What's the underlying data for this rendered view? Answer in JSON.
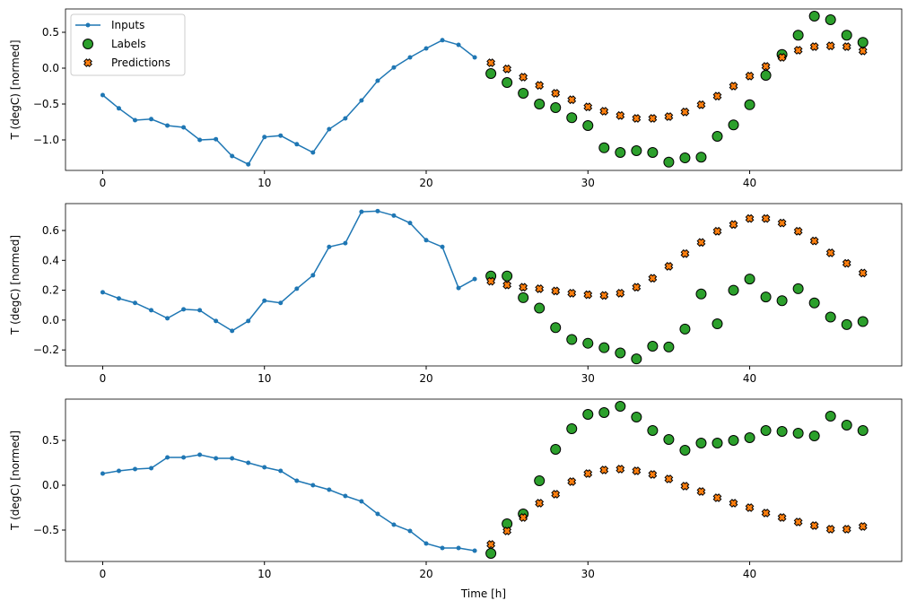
{
  "chart_data": {
    "type": "line",
    "xlabel": "Time [h]",
    "legend": {
      "placement": "top-left",
      "entries": [
        "Inputs",
        "Labels",
        "Predictions"
      ]
    },
    "colors": {
      "Inputs": "#1f77b4",
      "Labels": "#2ca02c",
      "Predictions": "#ff7f0e"
    },
    "xlim": [
      -2.3,
      49.4
    ],
    "xticks": [
      0,
      10,
      20,
      30,
      40
    ],
    "panels": [
      {
        "ylabel": "T (degC) [normed]",
        "ylim": [
          -1.425,
          0.825
        ],
        "yticks": [
          -1.0,
          -0.5,
          0.0,
          0.5
        ],
        "ytick_labels": [
          "−1.0",
          "−0.5",
          "0.0",
          "0.5"
        ],
        "inputs": [
          -0.375,
          -0.56,
          -0.725,
          -0.71,
          -0.8,
          -0.825,
          -1.0,
          -0.99,
          -1.225,
          -1.34,
          -0.96,
          -0.94,
          -1.06,
          -1.175,
          -0.85,
          -0.7,
          -0.45,
          -0.175,
          0.01,
          0.15,
          0.275,
          0.39,
          0.325,
          0.15
        ],
        "labels": [
          -0.075,
          -0.2,
          -0.35,
          -0.5,
          -0.55,
          -0.69,
          -0.8,
          -1.11,
          -1.175,
          -1.15,
          -1.175,
          -1.31,
          -1.25,
          -1.24,
          -0.95,
          -0.79,
          -0.51,
          -0.1,
          0.19,
          0.46,
          0.725,
          0.675,
          0.46,
          0.36
        ],
        "predictions": [
          0.075,
          -0.01,
          -0.125,
          -0.24,
          -0.35,
          -0.44,
          -0.54,
          -0.6,
          -0.66,
          -0.7,
          -0.7,
          -0.675,
          -0.61,
          -0.51,
          -0.39,
          -0.25,
          -0.11,
          0.025,
          0.15,
          0.25,
          0.3,
          0.31,
          0.3,
          0.24
        ]
      },
      {
        "ylabel": "T (degC) [normed]",
        "ylim": [
          -0.307,
          0.78
        ],
        "yticks": [
          -0.2,
          0.0,
          0.2,
          0.4,
          0.6
        ],
        "ytick_labels": [
          "−0.2",
          "0.0",
          "0.2",
          "0.4",
          "0.6"
        ],
        "inputs": [
          0.186,
          0.145,
          0.115,
          0.066,
          0.012,
          0.072,
          0.066,
          -0.006,
          -0.072,
          -0.006,
          0.13,
          0.115,
          0.21,
          0.3,
          0.49,
          0.515,
          0.725,
          0.73,
          0.7,
          0.65,
          0.535,
          0.49,
          0.215,
          0.275
        ],
        "labels": [
          0.295,
          0.295,
          0.15,
          0.08,
          -0.05,
          -0.13,
          -0.155,
          -0.185,
          -0.22,
          -0.26,
          -0.175,
          -0.18,
          -0.06,
          0.175,
          -0.025,
          0.2,
          0.275,
          0.155,
          0.13,
          0.21,
          0.115,
          0.02,
          -0.03,
          -0.01
        ],
        "predictions": [
          0.26,
          0.235,
          0.22,
          0.21,
          0.195,
          0.18,
          0.17,
          0.165,
          0.18,
          0.22,
          0.28,
          0.36,
          0.445,
          0.52,
          0.595,
          0.64,
          0.68,
          0.68,
          0.65,
          0.595,
          0.53,
          0.45,
          0.38,
          0.315
        ]
      },
      {
        "ylabel": "T (degC) [normed]",
        "ylim": [
          -0.85,
          0.96
        ],
        "yticks": [
          -0.5,
          0.0,
          0.5
        ],
        "ytick_labels": [
          "−0.5",
          "0.0",
          "0.5"
        ],
        "inputs": [
          0.13,
          0.16,
          0.18,
          0.19,
          0.31,
          0.31,
          0.34,
          0.3,
          0.3,
          0.25,
          0.2,
          0.16,
          0.05,
          0.0,
          -0.05,
          -0.12,
          -0.18,
          -0.32,
          -0.44,
          -0.51,
          -0.65,
          -0.7,
          -0.7,
          -0.73
        ],
        "labels": [
          -0.76,
          -0.43,
          -0.32,
          0.05,
          0.4,
          0.63,
          0.79,
          0.81,
          0.88,
          0.76,
          0.61,
          0.51,
          0.39,
          0.47,
          0.47,
          0.5,
          0.53,
          0.61,
          0.6,
          0.58,
          0.55,
          0.77,
          0.67,
          0.61
        ],
        "predictions": [
          -0.66,
          -0.51,
          -0.36,
          -0.2,
          -0.1,
          0.04,
          0.13,
          0.17,
          0.18,
          0.16,
          0.12,
          0.07,
          -0.01,
          -0.07,
          -0.14,
          -0.2,
          -0.25,
          -0.31,
          -0.36,
          -0.41,
          -0.45,
          -0.49,
          -0.49,
          -0.46
        ]
      }
    ]
  }
}
